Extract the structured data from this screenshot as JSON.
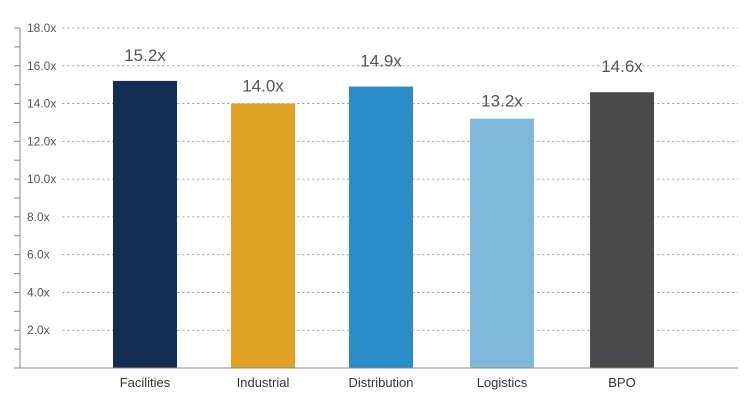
{
  "chart_data": {
    "type": "bar",
    "title": "",
    "xlabel": "",
    "ylabel": "",
    "categories": [
      "Facilities",
      "Industrial",
      "Distribution",
      "Logistics",
      "BPO"
    ],
    "values": [
      15.2,
      14.0,
      14.9,
      13.2,
      14.6
    ],
    "data_labels": [
      "15.2x",
      "14.0x",
      "14.9x",
      "13.2x",
      "14.6x"
    ],
    "bar_colors": [
      "#132e52",
      "#e0a224",
      "#2a8dc7",
      "#7fb8da",
      "#4a4a4c"
    ],
    "ylim": [
      0,
      18
    ],
    "yticks": [
      2,
      4,
      6,
      8,
      10,
      12,
      14,
      16,
      18
    ],
    "ytick_labels": [
      "2.0x",
      "4.0x",
      "6.0x",
      "8.0x",
      "10.0x",
      "12.0x",
      "14.0x",
      "16.0x",
      "18.0x"
    ],
    "minor_tick_step": 1,
    "grid": true,
    "legend": "none"
  }
}
